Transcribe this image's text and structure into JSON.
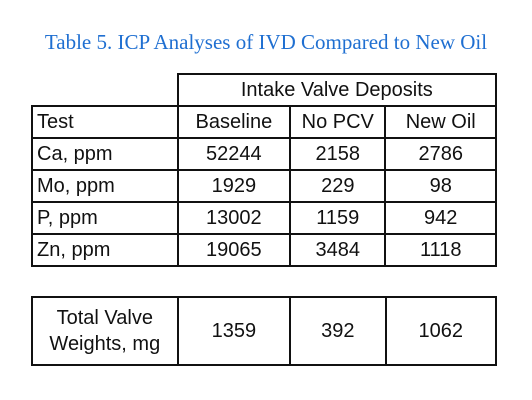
{
  "caption": "Table 5. ICP Analyses of IVD Compared to New Oil",
  "group_header": "Intake Valve Deposits",
  "columns": [
    "Test",
    "Baseline",
    "No PCV",
    "New Oil"
  ],
  "rows": [
    {
      "test": "Ca, ppm",
      "values": [
        "52244",
        "2158",
        "2786"
      ]
    },
    {
      "test": "Mo, ppm",
      "values": [
        "1929",
        "229",
        "98"
      ]
    },
    {
      "test": "P, ppm",
      "values": [
        "13002",
        "1159",
        "942"
      ]
    },
    {
      "test": "Zn, ppm",
      "values": [
        "19065",
        "3484",
        "1118"
      ]
    }
  ],
  "summary": {
    "label_line1": "Total Valve",
    "label_line2": "Weights, mg",
    "values": [
      "1359",
      "392",
      "1062"
    ]
  }
}
